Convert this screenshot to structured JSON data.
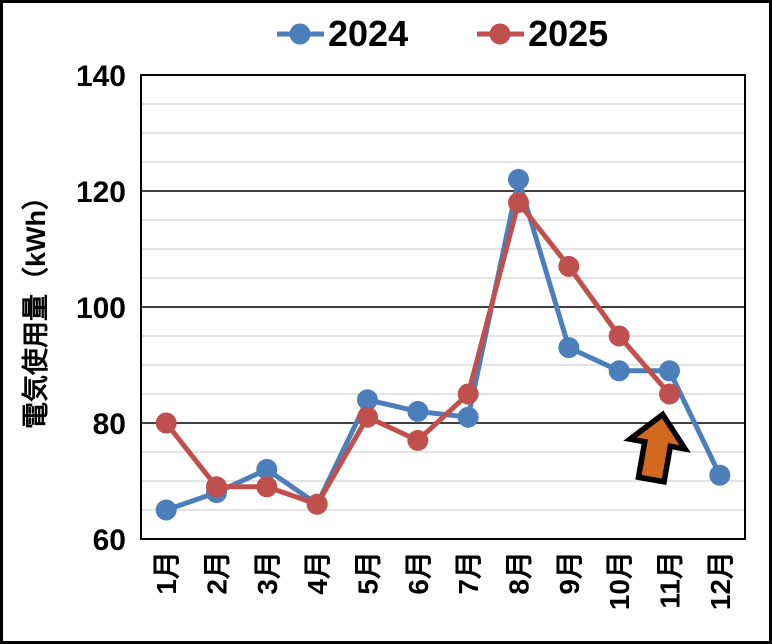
{
  "chart_data": {
    "type": "line",
    "title": "",
    "categories": [
      "1月",
      "2月",
      "3月",
      "4月",
      "5月",
      "6月",
      "7月",
      "8月",
      "9月",
      "10月",
      "11月",
      "12月"
    ],
    "series": [
      {
        "name": "2024",
        "color": "#4C7EBB",
        "values": [
          65,
          68,
          72,
          66,
          84,
          82,
          81,
          122,
          93,
          89,
          89,
          71
        ]
      },
      {
        "name": "2025",
        "color": "#C0504D",
        "values": [
          80,
          69,
          69,
          66,
          81,
          77,
          85,
          118,
          107,
          95,
          85,
          null
        ]
      }
    ],
    "xlabel": "",
    "ylabel": "電気使用量（kWh）",
    "ylim": [
      60,
      140
    ],
    "yticks_major": [
      60,
      80,
      100,
      120,
      140
    ],
    "ytick_minor_step": 5,
    "grid": "horizontal: gray minor every 5, black major every 20, black plot border",
    "legend_position": "top-center",
    "marker": "circle",
    "annotation": {
      "shape": "block-arrow-up",
      "fill": "#D2691E",
      "outline": "#000000",
      "rotation_deg": 10,
      "points_at": "11月 2025 data point"
    },
    "colors": {
      "minor_grid": "#C9C9C9",
      "major_grid": "#000000",
      "axis_text": "#000000",
      "background": "#ffffff",
      "outer_border": "#000000"
    }
  }
}
